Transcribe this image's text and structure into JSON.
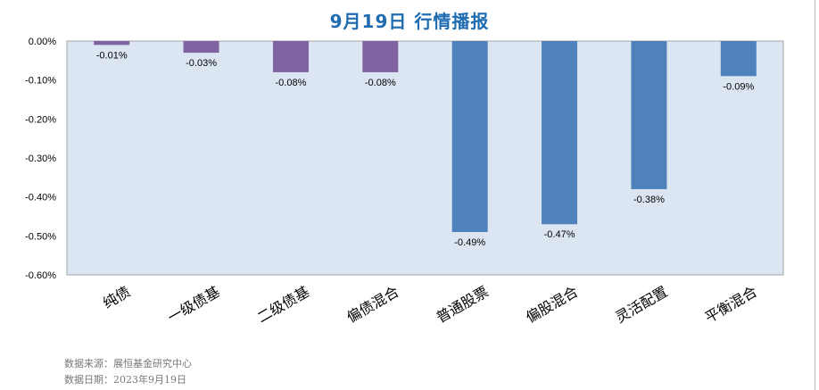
{
  "chart_data": {
    "type": "bar",
    "title": "9月19日  行情播报",
    "categories": [
      "纯债",
      "一级债基",
      "二级债基",
      "偏债混合",
      "普通股票",
      "偏股混合",
      "灵活配置",
      "平衡混合"
    ],
    "values": [
      -0.01,
      -0.03,
      -0.08,
      -0.08,
      -0.49,
      -0.47,
      -0.38,
      -0.09
    ],
    "data_labels": [
      "-0.01%",
      "-0.03%",
      "-0.08%",
      "-0.08%",
      "-0.49%",
      "-0.47%",
      "-0.38%",
      "-0.09%"
    ],
    "bar_colors": [
      "#8064A2",
      "#8064A2",
      "#8064A2",
      "#8064A2",
      "#4F81BD",
      "#4F81BD",
      "#4F81BD",
      "#4F81BD"
    ],
    "ylim": [
      -0.6,
      0
    ],
    "yticks": [
      0,
      -0.1,
      -0.2,
      -0.3,
      -0.4,
      -0.5,
      -0.6
    ],
    "ytick_labels": [
      "0.00%",
      "-0.10%",
      "-0.20%",
      "-0.30%",
      "-0.40%",
      "-0.50%",
      "-0.60%"
    ],
    "xlabel": "",
    "ylabel": "",
    "grid": false,
    "plot_bg": "#DCE6F2"
  },
  "footer": {
    "source": "数据来源：展恒基金研究中心",
    "date": "数据日期：2023年9月19日"
  }
}
